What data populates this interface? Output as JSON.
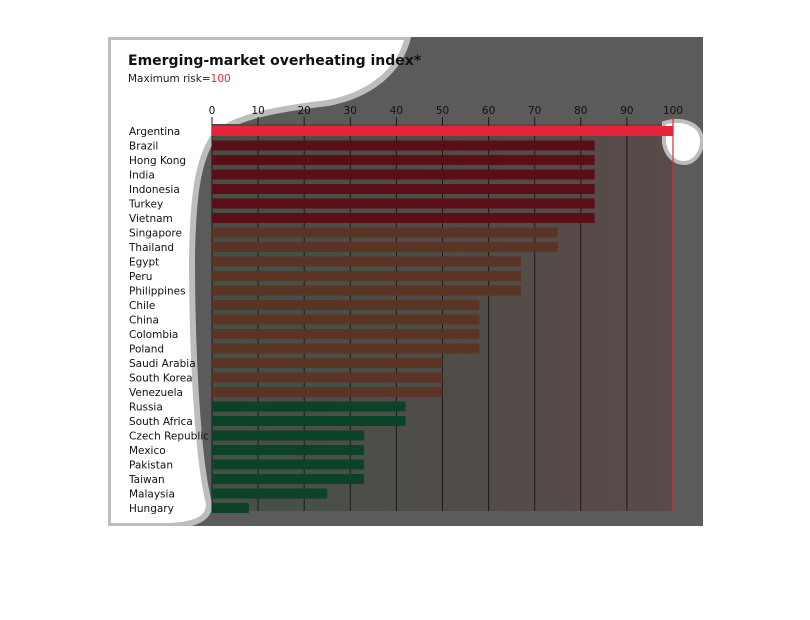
{
  "chart_data": {
    "type": "bar",
    "orientation": "horizontal",
    "title": "Emerging-market overheating index*",
    "subtitle_prefix": "Maximum risk=",
    "subtitle_value": "100",
    "xlim": [
      0,
      100
    ],
    "xticks": [
      0,
      10,
      20,
      30,
      40,
      50,
      60,
      70,
      80,
      90,
      100
    ],
    "grid": true,
    "categories": [
      "Argentina",
      "Brazil",
      "Hong Kong",
      "India",
      "Indonesia",
      "Turkey",
      "Vietnam",
      "Singapore",
      "Thailand",
      "Egypt",
      "Peru",
      "Philippines",
      "Chile",
      "China",
      "Colombia",
      "Poland",
      "Saudi Arabia",
      "South Korea",
      "Venezuela",
      "Russia",
      "South Africa",
      "Czech Republic",
      "Mexico",
      "Pakistan",
      "Taiwan",
      "Malaysia",
      "Hungary"
    ],
    "values": [
      100,
      83,
      83,
      83,
      83,
      83,
      83,
      75,
      75,
      67,
      67,
      67,
      58,
      58,
      58,
      58,
      50,
      50,
      50,
      42,
      42,
      33,
      33,
      33,
      33,
      25,
      8
    ],
    "colors": {
      "high": "#5a0e18",
      "top": "#e8243c",
      "medium": "#5a3424",
      "low": "#0c4226",
      "accent": "#d9303c",
      "panel": "#5b5b5b",
      "grid": "#1a1a1a"
    }
  }
}
